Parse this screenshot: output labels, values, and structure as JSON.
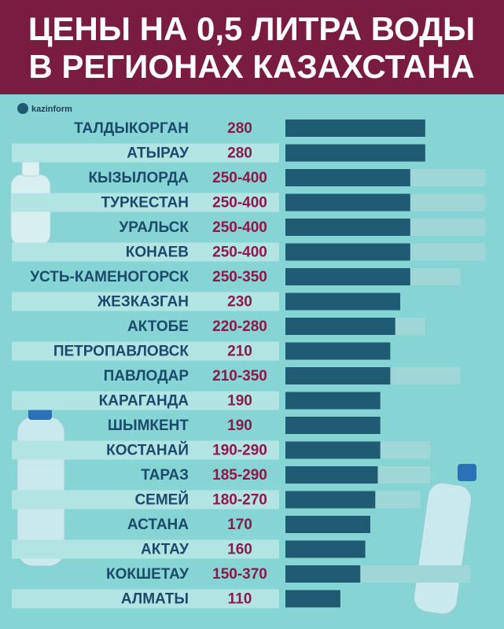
{
  "chart_data": {
    "type": "range-bar",
    "title_lines": [
      "ЦЕНЫ НА 0,5 ЛИТРА ВОДЫ",
      "В РЕГИОНАХ КАЗАХСТАНА"
    ],
    "source": "kazinform",
    "categories": [
      "ТАЛДЫКОРГАН",
      "АТЫРАУ",
      "КЫЗЫЛОРДА",
      "ТУРКЕСТАН",
      "УРАЛЬСК",
      "КОНАЕВ",
      "УСТЬ-КАМЕНОГОРСК",
      "ЖЕЗКАЗГАН",
      "АКТОБЕ",
      "ПЕТРОПАВЛОВСК",
      "ПАВЛОДАР",
      "КАРАГАНДА",
      "ШЫМКЕНТ",
      "КОСТАНАЙ",
      "ТАРАЗ",
      "СЕМЕЙ",
      "АСТАНА",
      "АКТАУ",
      "КОКШЕТАУ",
      "АЛМАТЫ"
    ],
    "series": [
      {
        "color": "#1f5b73",
        "values": [
          280,
          280,
          250,
          250,
          250,
          250,
          250,
          230,
          220,
          210,
          210,
          190,
          190,
          190,
          185,
          180,
          170,
          160,
          150,
          110
        ]
      },
      {
        "color": "#9fd7d9",
        "values": [
          null,
          null,
          400,
          400,
          400,
          400,
          350,
          null,
          280,
          null,
          350,
          null,
          null,
          290,
          290,
          270,
          null,
          null,
          370,
          null
        ]
      }
    ],
    "value_labels": [
      "280",
      "280",
      "250-400",
      "250-400",
      "250-400",
      "250-400",
      "250-350",
      "230",
      "220-280",
      "210",
      "210-350",
      "190",
      "190",
      "190-290",
      "185-290",
      "180-270",
      "170",
      "160",
      "150-370",
      "110"
    ]
  }
}
